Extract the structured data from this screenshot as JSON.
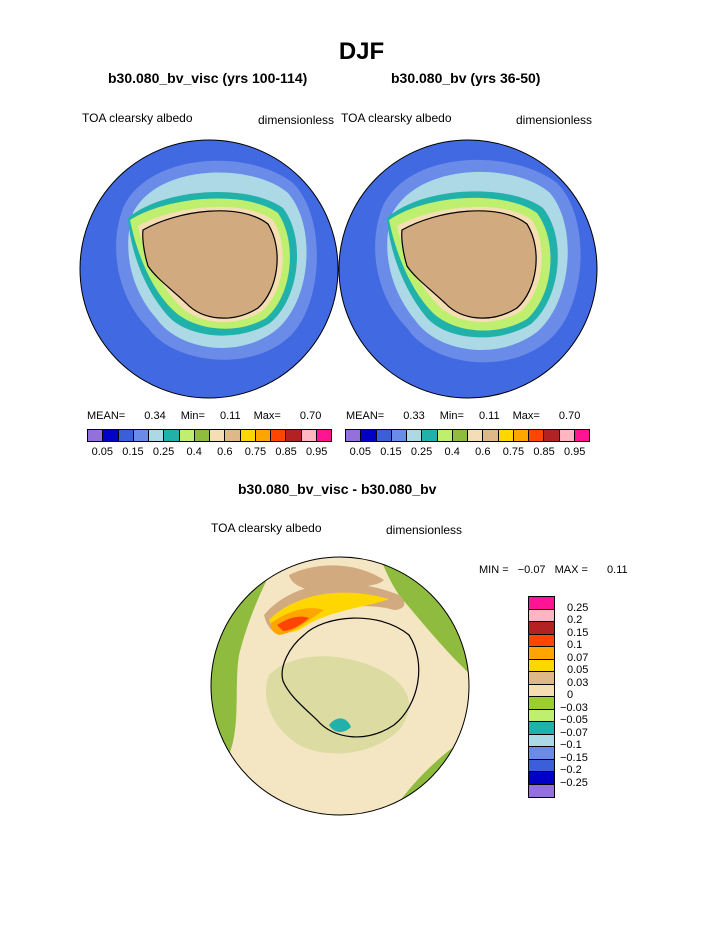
{
  "title": "DJF",
  "panels": [
    {
      "case_title": "b30.080_bv_visc (yrs 100-114)",
      "variable": "TOA clearsky albedo",
      "units": "dimensionless",
      "stats": {
        "mean_label": "MEAN=",
        "mean": "0.34",
        "min_label": "Min=",
        "min": "0.11",
        "max_label": "Max=",
        "max": "0.70"
      }
    },
    {
      "case_title": "b30.080_bv (yrs 36-50)",
      "variable": "TOA clearsky albedo",
      "units": "dimensionless",
      "stats": {
        "mean_label": "MEAN=",
        "mean": "0.33",
        "min_label": "Min=",
        "min": "0.11",
        "max_label": "Max=",
        "max": "0.70"
      }
    }
  ],
  "field_colorbar": {
    "colors": [
      "#9370db",
      "#0000c8",
      "#3a5fd8",
      "#6b8be8",
      "#add8e6",
      "#20b2aa",
      "#bfef6f",
      "#8fbc3f",
      "#f5deb3",
      "#deb887",
      "#ffd700",
      "#ffa500",
      "#ff4500",
      "#b22222",
      "#ffb6c1",
      "#ff1493"
    ],
    "ticks": [
      "0.05",
      "0.15",
      "0.25",
      "0.4",
      "0.6",
      "0.75",
      "0.85",
      "0.95"
    ]
  },
  "difference": {
    "title": "b30.080_bv_visc - b30.080_bv",
    "variable": "TOA clearsky albedo",
    "units": "dimensionless",
    "stats": {
      "min_label": "MIN =",
      "min": "−0.07",
      "max_label": "MAX =",
      "max": "0.11"
    },
    "colorbar": {
      "colors": [
        "#ff1493",
        "#ffb6c1",
        "#b22222",
        "#ff4500",
        "#ffa500",
        "#ffd700",
        "#deb887",
        "#f5deb3",
        "#9acd32",
        "#bfef6f",
        "#20b2aa",
        "#add8e6",
        "#6b8be8",
        "#3a5fd8",
        "#0000c8",
        "#9370db"
      ],
      "labels": [
        "0.25",
        "0.2",
        "0.15",
        "0.1",
        "0.07",
        "0.05",
        "0.03",
        "0",
        "−0.03",
        "−0.05",
        "−0.07",
        "−0.1",
        "−0.15",
        "−0.2",
        "−0.25"
      ]
    }
  },
  "map_colors": {
    "ocean": "#4169e1",
    "land": "#d2aa7f",
    "coast": "#000000",
    "diff_zero": "#f5e6c3",
    "diff_negative": "#8fbc3f"
  }
}
